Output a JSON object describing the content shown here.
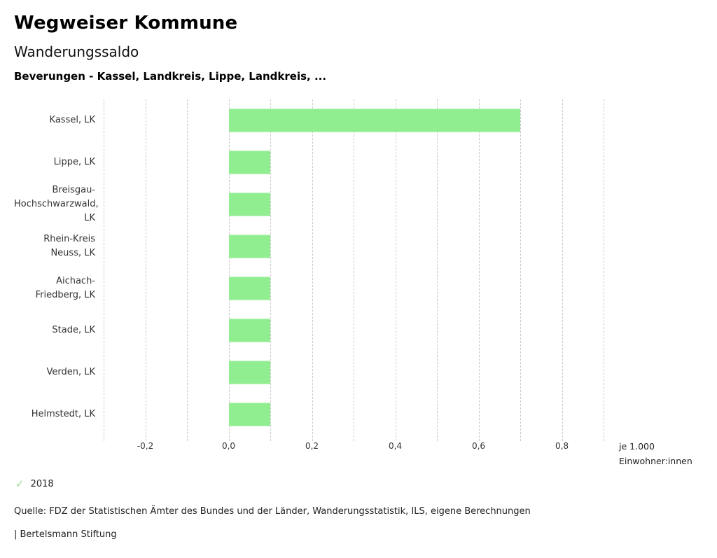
{
  "header": {
    "title": "Wegweiser Kommune",
    "subtitle": "Wanderungssaldo",
    "selection": "Beverungen - Kassel, Landkreis, Lippe, Landkreis, ..."
  },
  "chart_data": {
    "type": "bar",
    "orientation": "horizontal",
    "title": "Wanderungssaldo",
    "categories": [
      "Kassel, LK",
      "Lippe, LK",
      "Breisgau-Hochschwarzwald, LK",
      "Rhein-Kreis Neuss, LK",
      "Aichach-Friedberg, LK",
      "Stade, LK",
      "Verden, LK",
      "Helmstedt, LK"
    ],
    "series": [
      {
        "name": "2018",
        "color": "#90ee90",
        "values": [
          0.7,
          0.1,
          0.1,
          0.1,
          0.1,
          0.1,
          0.1,
          0.1
        ]
      }
    ],
    "xlim": [
      -0.3,
      0.9
    ],
    "grid_step": 0.1,
    "grid": true,
    "xticks": [
      -0.2,
      0.0,
      0.2,
      0.4,
      0.6,
      0.8
    ],
    "xtick_labels": [
      "-0,2",
      "0,0",
      "0,2",
      "0,4",
      "0,6",
      "0,8"
    ],
    "unit_label": "je 1.000 Einwohner:innen",
    "legend_position": "bottom-left"
  },
  "legend": {
    "items": [
      {
        "label": "2018",
        "checked": true,
        "color": "#8fd98f"
      }
    ]
  },
  "footer": {
    "source": "Quelle: FDZ der Statistischen Ämter des Bundes und der Länder, Wanderungsstatistik, ILS, eigene Berechnungen",
    "brand": "| Bertelsmann Stiftung"
  }
}
